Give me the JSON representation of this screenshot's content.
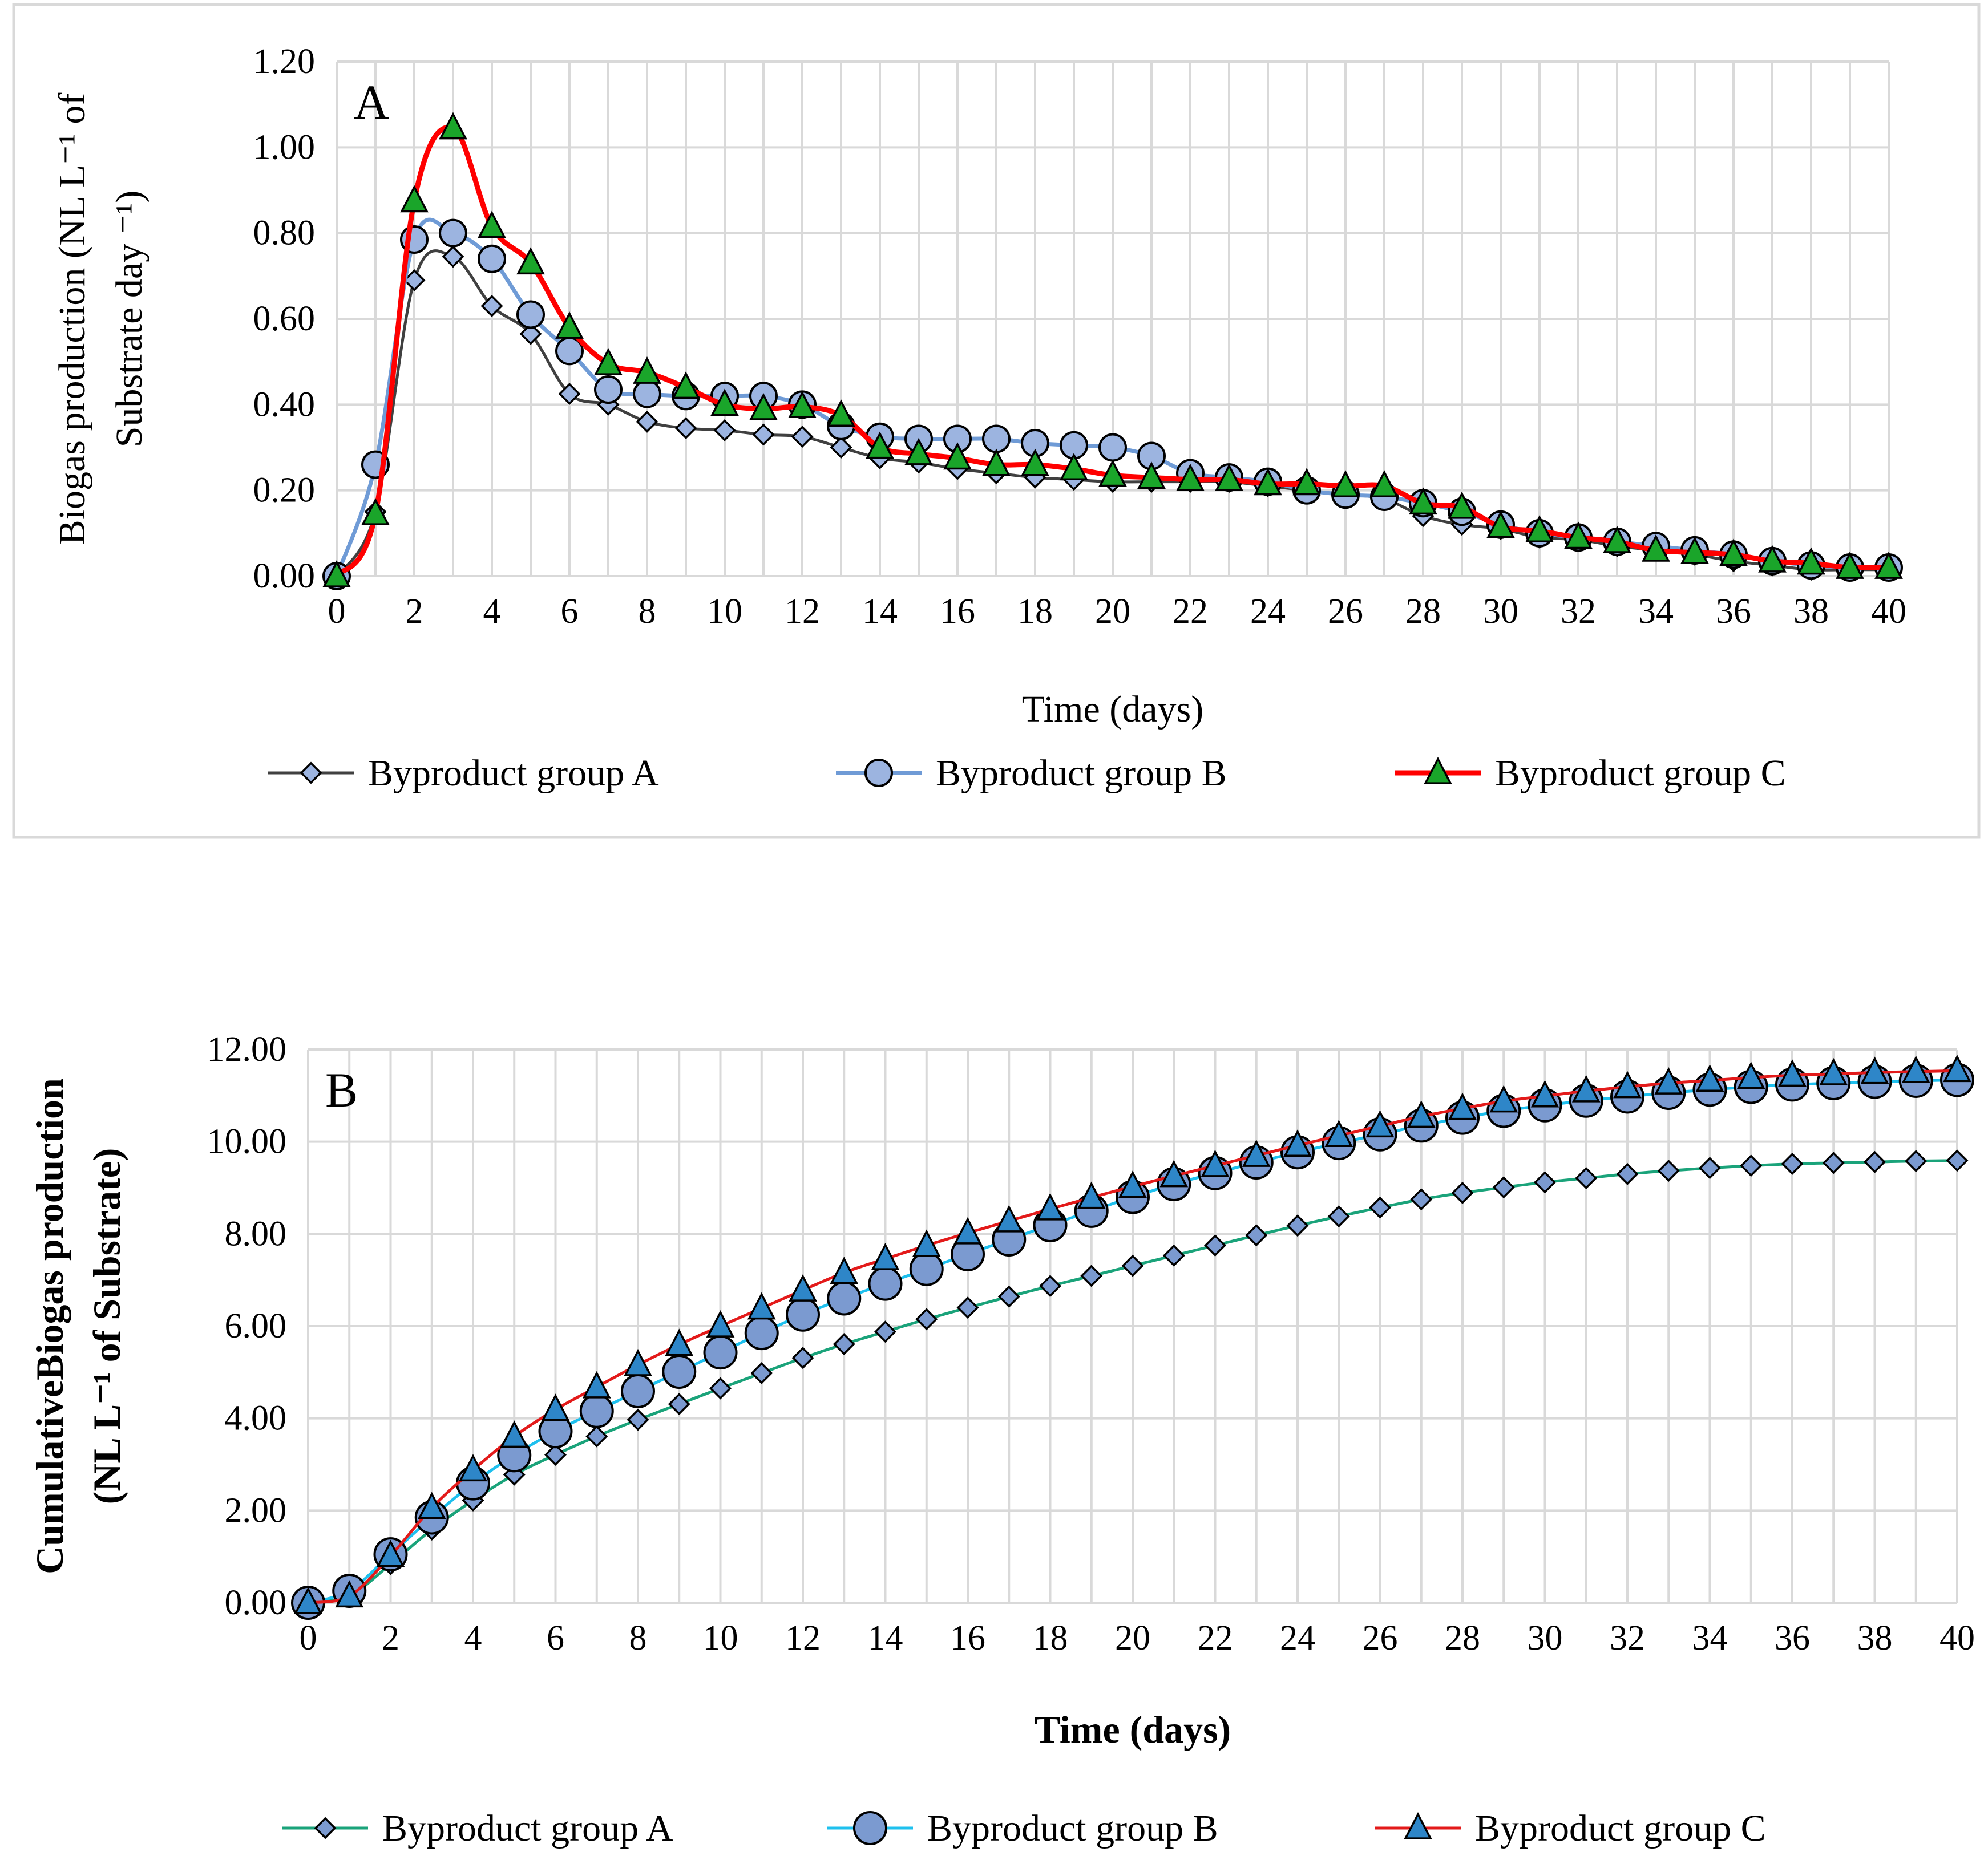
{
  "chart_data": [
    {
      "type": "line",
      "panel": "A",
      "xlabel": "Time (days)",
      "ylabel_line1": "Biogas production (NL L⁻¹ of",
      "ylabel_line2": "Substrate day ⁻¹)",
      "ylim": [
        0,
        1.2
      ],
      "xlim": [
        0,
        40
      ],
      "x_ticks": [
        "0",
        "2",
        "4",
        "6",
        "8",
        "10",
        "12",
        "14",
        "16",
        "18",
        "20",
        "22",
        "24",
        "26",
        "28",
        "30",
        "32",
        "34",
        "36",
        "38",
        "40"
      ],
      "y_ticks": [
        "0.00",
        "0.20",
        "0.40",
        "0.60",
        "0.80",
        "1.00",
        "1.20"
      ],
      "grid": true,
      "legend_position": "bottom",
      "x": [
        0,
        1,
        2,
        3,
        4,
        5,
        6,
        7,
        8,
        9,
        10,
        11,
        12,
        13,
        14,
        15,
        16,
        17,
        18,
        19,
        20,
        21,
        22,
        23,
        24,
        25,
        26,
        27,
        28,
        29,
        30,
        31,
        32,
        33,
        34,
        35,
        36,
        37,
        38,
        39,
        40
      ],
      "series": [
        {
          "name": "Byproduct group A",
          "color": "#404040",
          "marker": "diamond",
          "values": [
            0,
            0.15,
            0.69,
            0.745,
            0.63,
            0.565,
            0.425,
            0.4,
            0.36,
            0.345,
            0.34,
            0.33,
            0.325,
            0.3,
            0.275,
            0.265,
            0.25,
            0.24,
            0.23,
            0.225,
            0.22,
            0.22,
            0.22,
            0.22,
            0.21,
            0.2,
            0.19,
            0.18,
            0.14,
            0.12,
            0.11,
            0.09,
            0.085,
            0.07,
            0.06,
            0.05,
            0.035,
            0.025,
            0.015,
            0.015,
            0.015
          ]
        },
        {
          "name": "Byproduct group B",
          "color": "#6f9bd6",
          "marker": "circle",
          "values": [
            0,
            0.26,
            0.785,
            0.8,
            0.74,
            0.61,
            0.525,
            0.435,
            0.425,
            0.42,
            0.42,
            0.42,
            0.4,
            0.35,
            0.325,
            0.32,
            0.32,
            0.32,
            0.31,
            0.305,
            0.3,
            0.28,
            0.24,
            0.23,
            0.22,
            0.2,
            0.19,
            0.185,
            0.17,
            0.15,
            0.12,
            0.1,
            0.09,
            0.08,
            0.07,
            0.06,
            0.05,
            0.035,
            0.025,
            0.02,
            0.02
          ]
        },
        {
          "name": "Byproduct group C",
          "color": "#ff0000",
          "marker": "triangle",
          "values": [
            0,
            0.145,
            0.875,
            1.045,
            0.815,
            0.73,
            0.58,
            0.495,
            0.475,
            0.44,
            0.4,
            0.39,
            0.395,
            0.375,
            0.3,
            0.285,
            0.275,
            0.26,
            0.26,
            0.25,
            0.235,
            0.23,
            0.225,
            0.225,
            0.215,
            0.215,
            0.21,
            0.21,
            0.17,
            0.16,
            0.115,
            0.105,
            0.09,
            0.08,
            0.06,
            0.055,
            0.05,
            0.035,
            0.03,
            0.02,
            0.02
          ]
        }
      ]
    },
    {
      "type": "line",
      "panel": "B",
      "xlabel": "Time (days)",
      "ylabel_line1": "CumulativeBiogas production",
      "ylabel_line2": "(NL L⁻¹ of Substrate)",
      "ylim": [
        0,
        12
      ],
      "xlim": [
        0,
        40
      ],
      "x_ticks": [
        "0",
        "2",
        "4",
        "6",
        "8",
        "10",
        "12",
        "14",
        "16",
        "18",
        "20",
        "22",
        "24",
        "26",
        "28",
        "30",
        "32",
        "34",
        "36",
        "38",
        "40"
      ],
      "y_ticks": [
        "0.00",
        "2.00",
        "4.00",
        "6.00",
        "8.00",
        "10.00",
        "12.00"
      ],
      "grid": true,
      "legend_position": "bottom",
      "x": [
        0,
        1,
        2,
        3,
        4,
        5,
        6,
        7,
        8,
        9,
        10,
        11,
        12,
        13,
        14,
        15,
        16,
        17,
        18,
        19,
        20,
        21,
        22,
        23,
        24,
        25,
        26,
        27,
        28,
        29,
        30,
        31,
        32,
        33,
        34,
        35,
        36,
        37,
        38,
        39,
        40
      ],
      "series": [
        {
          "name": "Byproduct group A",
          "color": "#1aa37a",
          "marker": "diamond",
          "values": [
            0,
            0.15,
            0.84,
            1.59,
            2.22,
            2.78,
            3.21,
            3.61,
            3.97,
            4.31,
            4.65,
            4.98,
            5.31,
            5.61,
            5.88,
            6.15,
            6.4,
            6.64,
            6.87,
            7.09,
            7.31,
            7.53,
            7.75,
            7.97,
            8.18,
            8.38,
            8.57,
            8.75,
            8.89,
            9.01,
            9.12,
            9.21,
            9.3,
            9.37,
            9.43,
            9.48,
            9.52,
            9.54,
            9.56,
            9.58,
            9.59
          ]
        },
        {
          "name": "Byproduct group B",
          "color": "#1ec0ee",
          "marker": "circle",
          "values": [
            0,
            0.26,
            1.05,
            1.85,
            2.59,
            3.2,
            3.72,
            4.16,
            4.59,
            5.01,
            5.43,
            5.85,
            6.25,
            6.6,
            6.92,
            7.24,
            7.56,
            7.88,
            8.19,
            8.5,
            8.8,
            9.08,
            9.32,
            9.55,
            9.77,
            9.97,
            10.16,
            10.35,
            10.52,
            10.67,
            10.79,
            10.89,
            10.98,
            11.06,
            11.13,
            11.19,
            11.24,
            11.27,
            11.3,
            11.32,
            11.34
          ]
        },
        {
          "name": "Byproduct group C",
          "color": "#e31a1a",
          "marker": "triangle",
          "values": [
            0,
            0.145,
            1.02,
            2.06,
            2.88,
            3.61,
            4.19,
            4.68,
            5.16,
            5.6,
            6.0,
            6.39,
            6.78,
            7.16,
            7.46,
            7.75,
            8.02,
            8.28,
            8.54,
            8.79,
            9.03,
            9.26,
            9.48,
            9.7,
            9.92,
            10.13,
            10.34,
            10.55,
            10.72,
            10.88,
            10.99,
            11.1,
            11.19,
            11.27,
            11.33,
            11.39,
            11.44,
            11.47,
            11.5,
            11.52,
            11.54
          ]
        }
      ]
    }
  ]
}
